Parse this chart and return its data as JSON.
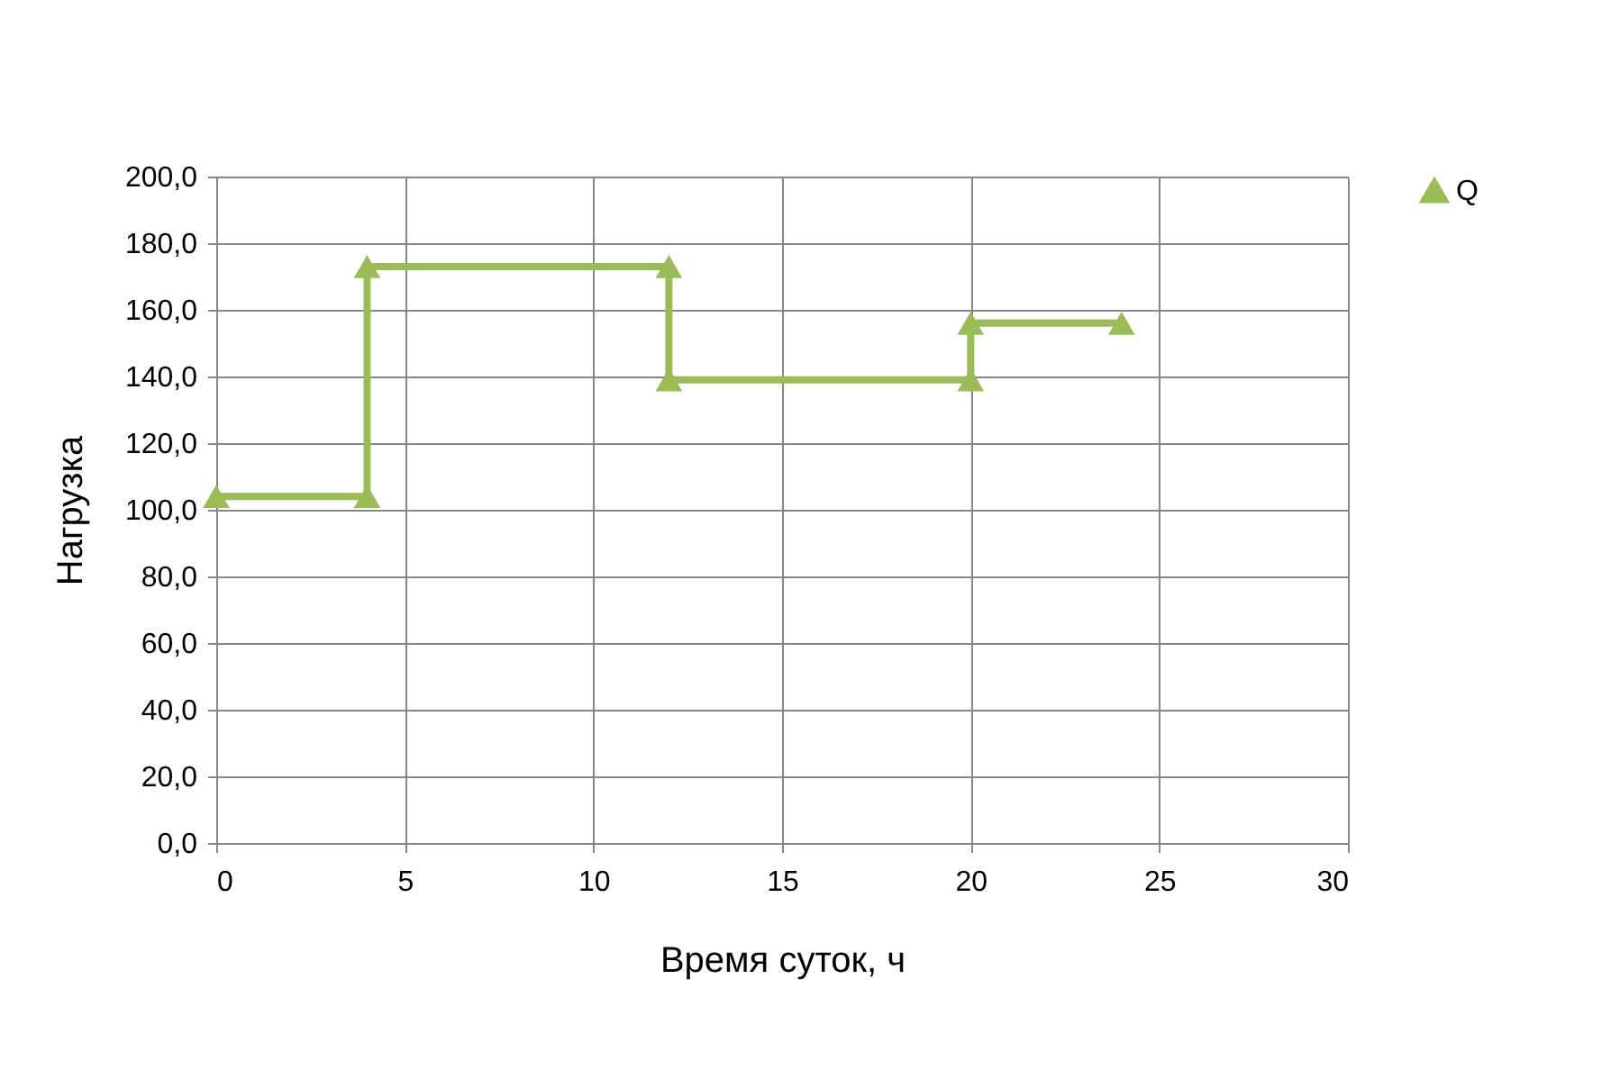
{
  "chart_data": {
    "type": "line",
    "xlabel": "Время суток, ч",
    "ylabel": "Нагрузка",
    "series": [
      {
        "name": "Q",
        "color": "#9bbb59",
        "x": [
          0,
          4,
          4,
          12,
          12,
          20,
          20,
          24
        ],
        "values": [
          104,
          104,
          173,
          173,
          139,
          139,
          156,
          156
        ]
      }
    ],
    "xlim": [
      0,
      30
    ],
    "xticks": [
      0,
      5,
      10,
      15,
      20,
      25,
      30
    ],
    "ylim": [
      0,
      200
    ],
    "yticks": [
      {
        "value": 0,
        "label": "0,0"
      },
      {
        "value": 20,
        "label": "20,0"
      },
      {
        "value": 40,
        "label": "40,0"
      },
      {
        "value": 60,
        "label": "60,0"
      },
      {
        "value": 80,
        "label": "80,0"
      },
      {
        "value": 100,
        "label": "100,0"
      },
      {
        "value": 120,
        "label": "120,0"
      },
      {
        "value": 140,
        "label": "140,0"
      },
      {
        "value": 160,
        "label": "160,0"
      },
      {
        "value": 180,
        "label": "180,0"
      },
      {
        "value": 200,
        "label": "200,0"
      }
    ],
    "grid": true,
    "legend": "right",
    "marker": "triangle",
    "line_style": "solid"
  }
}
